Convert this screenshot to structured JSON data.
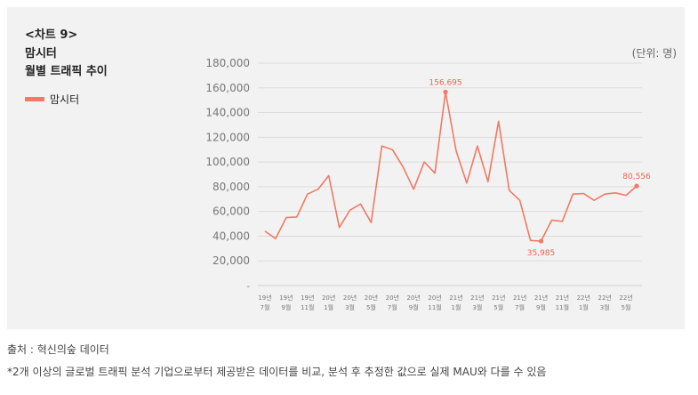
{
  "header": {
    "chart_no": "<차트 9>",
    "title_line1": "맘시터",
    "title_line2": "월별 트래픽 추이",
    "unit": "(단위: 명)"
  },
  "footer": {
    "source": "출처 : 혁신의숲 데이터",
    "note": "*2개 이상의 글로벌 트래픽 분석 기업으로부터 제공받은 데이터를 비교, 분석 후 추정한 값으로 실제 MAU와 다를 수 있음"
  },
  "colors": {
    "line": "#f07a64",
    "label": "#e8654d",
    "grid": "#dcdcdc",
    "tick": "#777777"
  },
  "chart_data": {
    "type": "line",
    "title": "월별 트래픽 추이",
    "ylim": [
      0,
      180000
    ],
    "yticks": [
      20000,
      40000,
      60000,
      80000,
      100000,
      120000,
      140000,
      160000,
      180000
    ],
    "ytick_labels": [
      "20,000",
      "40,000",
      "60,000",
      "80,000",
      "100,000",
      "120,000",
      "140,000",
      "160,000",
      "180,000"
    ],
    "zero_label": "-",
    "grid": true,
    "legend": {
      "position": "left",
      "entries": [
        "맘시터"
      ]
    },
    "x_ticks": [
      {
        "index": 0,
        "year": "19년",
        "month": "7월"
      },
      {
        "index": 2,
        "year": "19년",
        "month": "9월"
      },
      {
        "index": 4,
        "year": "19년",
        "month": "11월"
      },
      {
        "index": 6,
        "year": "20년",
        "month": "1월"
      },
      {
        "index": 8,
        "year": "20년",
        "month": "3월"
      },
      {
        "index": 10,
        "year": "20년",
        "month": "5월"
      },
      {
        "index": 12,
        "year": "20년",
        "month": "7월"
      },
      {
        "index": 14,
        "year": "20년",
        "month": "9월"
      },
      {
        "index": 16,
        "year": "20년",
        "month": "11월"
      },
      {
        "index": 18,
        "year": "21년",
        "month": "1월"
      },
      {
        "index": 20,
        "year": "21년",
        "month": "3월"
      },
      {
        "index": 22,
        "year": "21년",
        "month": "5월"
      },
      {
        "index": 24,
        "year": "21년",
        "month": "7월"
      },
      {
        "index": 26,
        "year": "21년",
        "month": "9월"
      },
      {
        "index": 28,
        "year": "21년",
        "month": "11월"
      },
      {
        "index": 30,
        "year": "22년",
        "month": "1월"
      },
      {
        "index": 32,
        "year": "22년",
        "month": "3월"
      },
      {
        "index": 34,
        "year": "22년",
        "month": "5월"
      }
    ],
    "series": [
      {
        "name": "맘시터",
        "values": [
          44000,
          38000,
          55000,
          55500,
          74000,
          78000,
          89000,
          47000,
          61000,
          66000,
          51000,
          113000,
          110000,
          96000,
          78000,
          100000,
          91000,
          156695,
          109000,
          83000,
          113000,
          84000,
          133000,
          77000,
          69000,
          36500,
          35985,
          53000,
          52000,
          74000,
          74500,
          69000,
          74000,
          75000,
          73000,
          80556
        ]
      }
    ],
    "annotations": [
      {
        "index": 17,
        "label": "156,695",
        "pos": "above"
      },
      {
        "index": 26,
        "label": "35,985",
        "pos": "below"
      },
      {
        "index": 35,
        "label": "80,556",
        "pos": "above"
      }
    ]
  }
}
